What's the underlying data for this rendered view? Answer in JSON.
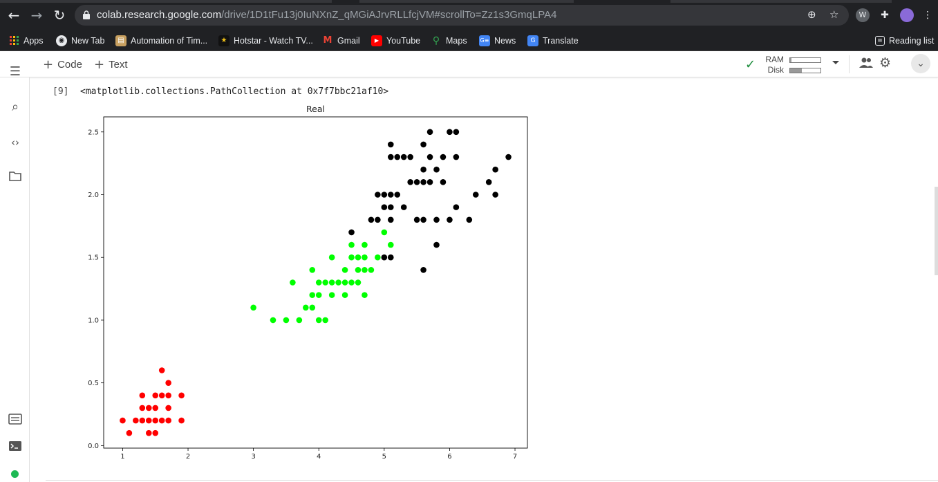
{
  "browser": {
    "url_host": "colab.research.google.com",
    "url_path": "/drive/1D1tFu13j0IuNXnZ_qMGiAJrvRLLfcjVM#scrollTo=Zz1s3GmqLPA4",
    "bookmarks": [
      {
        "label": "Apps",
        "icon": "apps-grid-icon",
        "color": "#ea4335"
      },
      {
        "label": "New Tab",
        "icon": "globe-icon",
        "color": "#e8eaed"
      },
      {
        "label": "Automation of Tim...",
        "icon": "page-icon",
        "color": "#c8a060"
      },
      {
        "label": "Hotstar - Watch TV...",
        "icon": "hotstar-icon",
        "color": "#f5c518"
      },
      {
        "label": "Gmail",
        "icon": "gmail-icon",
        "color": "#ea4335"
      },
      {
        "label": "YouTube",
        "icon": "youtube-icon",
        "color": "#ff0000"
      },
      {
        "label": "Maps",
        "icon": "maps-pin-icon",
        "color": "#34a853"
      },
      {
        "label": "News",
        "icon": "news-icon",
        "color": "#4285f4"
      },
      {
        "label": "Translate",
        "icon": "translate-icon",
        "color": "#4285f4"
      }
    ],
    "reading_list": "Reading list"
  },
  "toolbar": {
    "code_label": "Code",
    "text_label": "Text",
    "ram_label": "RAM",
    "disk_label": "Disk",
    "ram_usage": 0.04,
    "disk_usage": 0.38,
    "status_color": "#1e8e3e"
  },
  "cell": {
    "execution_count": "[9]",
    "output_text": "<matplotlib.collections.PathCollection at 0x7f7bbc21af10>"
  },
  "chart_data": {
    "type": "scatter",
    "title": "Real",
    "xlabel": "",
    "ylabel": "",
    "xlim": [
      0.71,
      7.19
    ],
    "ylim": [
      -0.02,
      2.62
    ],
    "xticks": [
      1,
      2,
      3,
      4,
      5,
      6,
      7
    ],
    "yticks": [
      "0.0",
      "0.5",
      "1.0",
      "1.5",
      "2.0",
      "2.5"
    ],
    "grid": false,
    "series": [
      {
        "color": "#ff0000",
        "points": [
          [
            1.1,
            0.1
          ],
          [
            1.4,
            0.1
          ],
          [
            1.5,
            0.1
          ],
          [
            1.0,
            0.2
          ],
          [
            1.2,
            0.2
          ],
          [
            1.3,
            0.2
          ],
          [
            1.4,
            0.2
          ],
          [
            1.5,
            0.2
          ],
          [
            1.6,
            0.2
          ],
          [
            1.7,
            0.2
          ],
          [
            1.9,
            0.2
          ],
          [
            1.3,
            0.3
          ],
          [
            1.4,
            0.3
          ],
          [
            1.5,
            0.3
          ],
          [
            1.7,
            0.3
          ],
          [
            1.3,
            0.4
          ],
          [
            1.5,
            0.4
          ],
          [
            1.6,
            0.4
          ],
          [
            1.7,
            0.4
          ],
          [
            1.9,
            0.4
          ],
          [
            1.7,
            0.5
          ],
          [
            1.6,
            0.6
          ]
        ]
      },
      {
        "color": "#00ff00",
        "points": [
          [
            3.0,
            1.1
          ],
          [
            3.3,
            1.0
          ],
          [
            3.5,
            1.0
          ],
          [
            3.7,
            1.0
          ],
          [
            4.0,
            1.0
          ],
          [
            4.1,
            1.0
          ],
          [
            3.8,
            1.1
          ],
          [
            3.9,
            1.1
          ],
          [
            3.9,
            1.2
          ],
          [
            4.0,
            1.2
          ],
          [
            4.2,
            1.2
          ],
          [
            4.4,
            1.2
          ],
          [
            4.7,
            1.2
          ],
          [
            3.6,
            1.3
          ],
          [
            4.0,
            1.3
          ],
          [
            4.1,
            1.3
          ],
          [
            4.2,
            1.3
          ],
          [
            4.3,
            1.3
          ],
          [
            4.4,
            1.3
          ],
          [
            4.5,
            1.3
          ],
          [
            4.6,
            1.3
          ],
          [
            3.9,
            1.4
          ],
          [
            4.4,
            1.4
          ],
          [
            4.6,
            1.4
          ],
          [
            4.7,
            1.4
          ],
          [
            4.8,
            1.4
          ],
          [
            4.2,
            1.5
          ],
          [
            4.5,
            1.5
          ],
          [
            4.6,
            1.5
          ],
          [
            4.7,
            1.5
          ],
          [
            4.9,
            1.5
          ],
          [
            4.5,
            1.6
          ],
          [
            4.7,
            1.6
          ],
          [
            5.1,
            1.6
          ],
          [
            5.0,
            1.7
          ]
        ]
      },
      {
        "color": "#000000",
        "points": [
          [
            5.6,
            1.4
          ],
          [
            5.0,
            1.5
          ],
          [
            5.1,
            1.5
          ],
          [
            5.8,
            1.6
          ],
          [
            4.5,
            1.7
          ],
          [
            4.8,
            1.8
          ],
          [
            4.9,
            1.8
          ],
          [
            5.1,
            1.8
          ],
          [
            5.5,
            1.8
          ],
          [
            5.6,
            1.8
          ],
          [
            5.8,
            1.8
          ],
          [
            6.0,
            1.8
          ],
          [
            6.3,
            1.8
          ],
          [
            5.0,
            1.9
          ],
          [
            5.1,
            1.9
          ],
          [
            5.3,
            1.9
          ],
          [
            6.1,
            1.9
          ],
          [
            4.9,
            2.0
          ],
          [
            5.0,
            2.0
          ],
          [
            5.1,
            2.0
          ],
          [
            5.2,
            2.0
          ],
          [
            6.4,
            2.0
          ],
          [
            6.7,
            2.0
          ],
          [
            5.4,
            2.1
          ],
          [
            5.5,
            2.1
          ],
          [
            5.6,
            2.1
          ],
          [
            5.7,
            2.1
          ],
          [
            5.9,
            2.1
          ],
          [
            6.6,
            2.1
          ],
          [
            5.6,
            2.2
          ],
          [
            5.8,
            2.2
          ],
          [
            6.7,
            2.2
          ],
          [
            5.1,
            2.3
          ],
          [
            5.2,
            2.3
          ],
          [
            5.3,
            2.3
          ],
          [
            5.4,
            2.3
          ],
          [
            5.7,
            2.3
          ],
          [
            5.9,
            2.3
          ],
          [
            6.1,
            2.3
          ],
          [
            6.9,
            2.3
          ],
          [
            5.1,
            2.4
          ],
          [
            5.6,
            2.4
          ],
          [
            5.7,
            2.5
          ],
          [
            6.0,
            2.5
          ],
          [
            6.1,
            2.5
          ]
        ]
      }
    ]
  }
}
